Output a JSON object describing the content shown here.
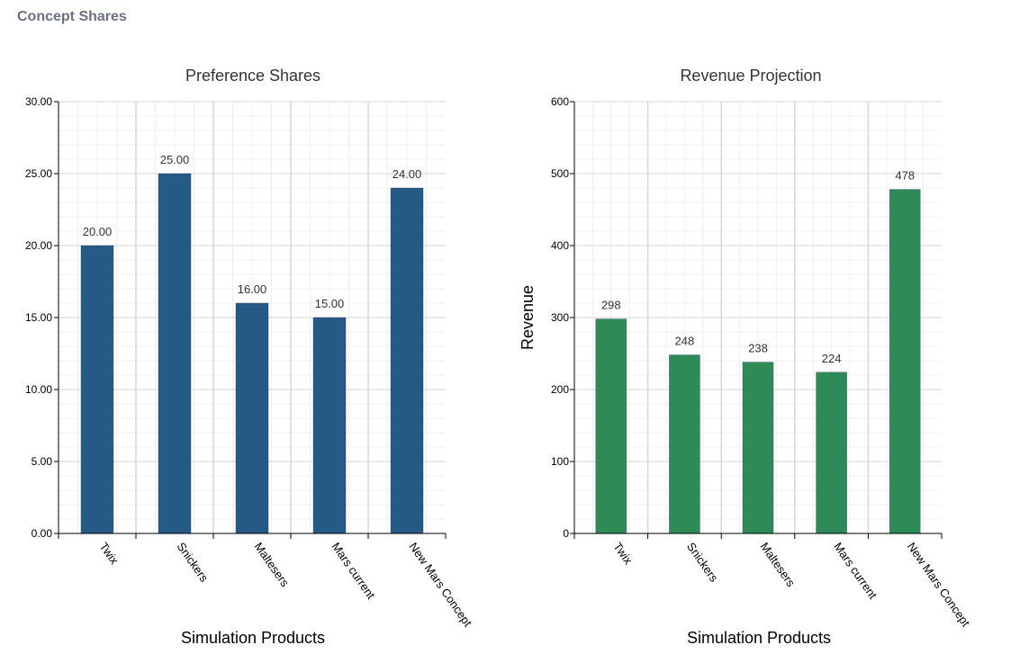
{
  "page": {
    "title": "Concept Shares"
  },
  "chart_data": [
    {
      "type": "bar",
      "title": "Preference Shares",
      "xlabel": "Simulation Products",
      "ylabel": "",
      "categories": [
        "Twix",
        "Snickers",
        "Maltesers",
        "Mars current",
        "New Mars Concept"
      ],
      "values": [
        20,
        25,
        16,
        15,
        24
      ],
      "value_labels": [
        "20.00",
        "25.00",
        "16.00",
        "15.00",
        "24.00"
      ],
      "ylim": [
        0,
        30
      ],
      "y_ticks": [
        0,
        5,
        10,
        15,
        20,
        25,
        30
      ],
      "y_tick_labels": [
        "0.00",
        "5.00",
        "10.00",
        "15.00",
        "20.00",
        "25.00",
        "30.00"
      ],
      "grid": true,
      "legend": "none",
      "bar_color": "#255a87"
    },
    {
      "type": "bar",
      "title": "Revenue Projection",
      "xlabel": "Simulation Products",
      "ylabel": "Revenue",
      "categories": [
        "Twix",
        "Snickers",
        "Maltesers",
        "Mars current",
        "New Mars Concept"
      ],
      "values": [
        298,
        248,
        238,
        224,
        478
      ],
      "value_labels": [
        "298",
        "248",
        "238",
        "224",
        "478"
      ],
      "ylim": [
        0,
        600
      ],
      "y_ticks": [
        0,
        100,
        200,
        300,
        400,
        500,
        600
      ],
      "y_tick_labels": [
        "0",
        "100",
        "200",
        "300",
        "400",
        "500",
        "600"
      ],
      "grid": true,
      "legend": "none",
      "bar_color": "#2e8b57"
    }
  ]
}
